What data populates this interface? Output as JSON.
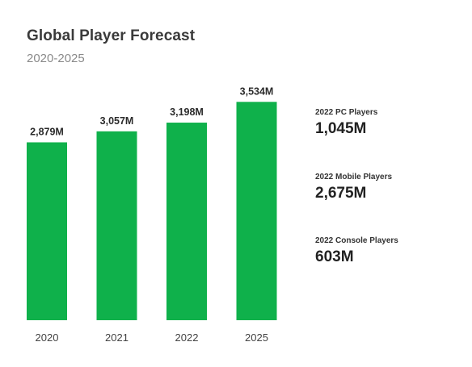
{
  "header": {
    "title": "Global Player Forecast",
    "subtitle": "2020-2025"
  },
  "chart_data": {
    "type": "bar",
    "title": "Global Player Forecast",
    "subtitle": "2020-2025",
    "categories": [
      "2020",
      "2021",
      "2022",
      "2025"
    ],
    "values": [
      2879,
      3057,
      3198,
      3534
    ],
    "value_labels": [
      "2,879M",
      "3,057M",
      "3,198M",
      "3,534M"
    ],
    "xlabel": "",
    "ylabel": "",
    "grid": false,
    "legend": "none",
    "bar_color": "#0fb14b"
  },
  "stats": [
    {
      "label": "2022 PC Players",
      "value": "1,045M"
    },
    {
      "label": "2022 Mobile Players",
      "value": "2,675M"
    },
    {
      "label": "2022 Console Players",
      "value": "603M"
    }
  ]
}
